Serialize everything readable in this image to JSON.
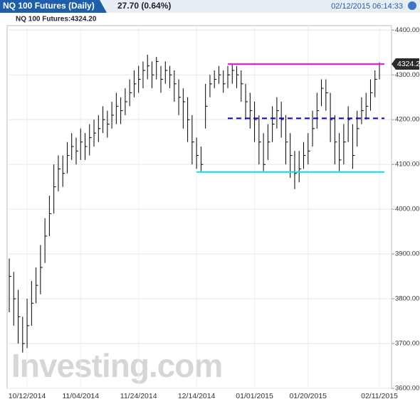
{
  "header": {
    "title": "NQ 100 Futures (Daily)",
    "change": "27.70 (0.64%)",
    "timestamp": "02/12/2015 06:14:33"
  },
  "chart_data": {
    "type": "ohlc",
    "subtitle": "NQ 100 Futures:4324.20",
    "last_label": "4324.2",
    "last_value": 4324.2,
    "watermark": "Investing.com",
    "categories": [
      null,
      null,
      null,
      null,
      "10/12/2014",
      null,
      null,
      null,
      null,
      null,
      null,
      null,
      null,
      null,
      null,
      null,
      "11/04/2014",
      null,
      null,
      null,
      null,
      null,
      null,
      null,
      null,
      null,
      null,
      null,
      null,
      "11/24/2014",
      null,
      null,
      null,
      null,
      null,
      null,
      null,
      null,
      null,
      null,
      null,
      null,
      "12/14/2014",
      null,
      null,
      null,
      null,
      null,
      null,
      null,
      null,
      null,
      null,
      null,
      null,
      "01/01/2015",
      null,
      null,
      null,
      null,
      null,
      null,
      null,
      null,
      null,
      null,
      null,
      "01/20/2015",
      null,
      null,
      null,
      null,
      null,
      null,
      null,
      null,
      null,
      null,
      null,
      null,
      null,
      null,
      null,
      "02/11/2015"
    ],
    "series": [
      {
        "name": "NQ 100 Futures",
        "color": "#000000",
        "close": [
          3850,
          3800,
          3760,
          3700,
          3740,
          3790,
          3830,
          3870,
          3940,
          3990,
          4050,
          4090,
          4080,
          4120,
          4140,
          4130,
          4150,
          4140,
          4160,
          4170,
          4180,
          4200,
          4190,
          4210,
          4230,
          4220,
          4240,
          4260,
          4280,
          4290,
          4310,
          4320,
          4300,
          4330,
          4290,
          4310,
          4300,
          4280,
          4250,
          4240,
          4200,
          4150,
          4120,
          4100,
          4230,
          4280,
          4290,
          4300,
          4280,
          4300,
          4310,
          4300,
          4280,
          4240,
          4220,
          4200,
          4150,
          4100,
          4150,
          4190,
          4220,
          4200,
          4150,
          4120,
          4080,
          4090,
          4120,
          4130,
          4180,
          4220,
          4270,
          4260,
          4200,
          4150,
          4110,
          4150,
          4200,
          4120,
          4180,
          4220,
          4230,
          4260,
          4290,
          4324.2
        ],
        "high": [
          3890,
          3860,
          3820,
          3760,
          3800,
          3840,
          3870,
          3920,
          3980,
          4030,
          4100,
          4120,
          4120,
          4150,
          4170,
          4160,
          4180,
          4170,
          4190,
          4200,
          4210,
          4230,
          4220,
          4240,
          4260,
          4250,
          4270,
          4290,
          4310,
          4320,
          4330,
          4345,
          4330,
          4340,
          4320,
          4330,
          4320,
          4310,
          4290,
          4270,
          4250,
          4210,
          4160,
          4140,
          4280,
          4300,
          4310,
          4320,
          4310,
          4320,
          4325,
          4320,
          4310,
          4280,
          4260,
          4240,
          4210,
          4170,
          4190,
          4230,
          4250,
          4240,
          4210,
          4170,
          4130,
          4130,
          4150,
          4170,
          4220,
          4260,
          4290,
          4290,
          4260,
          4210,
          4170,
          4190,
          4230,
          4190,
          4220,
          4250,
          4260,
          4290,
          4310,
          4328
        ],
        "low": [
          3770,
          3740,
          3700,
          3680,
          3690,
          3740,
          3790,
          3810,
          3880,
          3940,
          3990,
          4040,
          4050,
          4080,
          4110,
          4100,
          4110,
          4110,
          4120,
          4140,
          4150,
          4170,
          4160,
          4180,
          4190,
          4190,
          4210,
          4230,
          4250,
          4260,
          4270,
          4290,
          4270,
          4290,
          4260,
          4280,
          4270,
          4240,
          4210,
          4180,
          4150,
          4100,
          4090,
          4085,
          4180,
          4250,
          4270,
          4280,
          4260,
          4270,
          4280,
          4270,
          4240,
          4200,
          4180,
          4150,
          4100,
          4085,
          4110,
          4150,
          4180,
          4160,
          4100,
          4070,
          4045,
          4060,
          4090,
          4100,
          4140,
          4180,
          4230,
          4220,
          4150,
          4100,
          4085,
          4100,
          4150,
          4090,
          4140,
          4190,
          4200,
          4220,
          4250,
          4290
        ]
      }
    ],
    "hlines": [
      {
        "value": 4324,
        "color": "#ff00ff",
        "x0": 49
      },
      {
        "value": 4203,
        "color": "#0000cc",
        "x0": 49,
        "dash": true
      },
      {
        "value": 4083,
        "color": "#00e5ee",
        "x0": 42
      }
    ],
    "ylim": [
      3600,
      4410
    ],
    "yticks": [
      {
        "value": 3600,
        "label": "3600.00"
      },
      {
        "value": 3700,
        "label": "3700.00"
      },
      {
        "value": 3800,
        "label": "3800.00"
      },
      {
        "value": 3900,
        "label": "3900.00"
      },
      {
        "value": 4000,
        "label": "4000.00"
      },
      {
        "value": 4100,
        "label": "4100.00"
      },
      {
        "value": 4200,
        "label": "4200.00"
      },
      {
        "value": 4300,
        "label": "4300.00"
      },
      {
        "value": 4400,
        "label": "4400.00"
      }
    ],
    "grid": true
  }
}
